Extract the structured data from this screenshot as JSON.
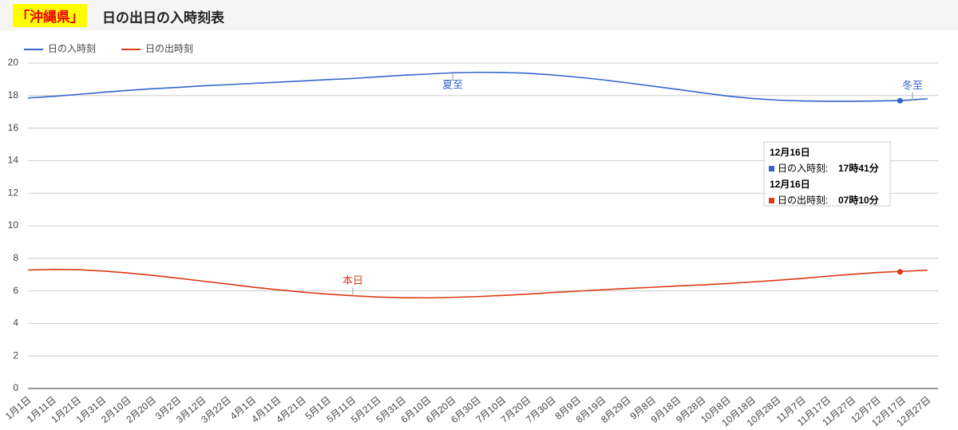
{
  "header": {
    "prefecture": "「沖縄県」",
    "title": "日の出日の入時刻表"
  },
  "chart_data": {
    "type": "line",
    "categories": [
      "1月1日",
      "1月11日",
      "1月21日",
      "1月31日",
      "2月10日",
      "2月20日",
      "3月2日",
      "3月12日",
      "3月22日",
      "4月1日",
      "4月11日",
      "4月21日",
      "5月1日",
      "5月11日",
      "5月21日",
      "5月31日",
      "6月10日",
      "6月20日",
      "6月30日",
      "7月10日",
      "7月20日",
      "7月30日",
      "8月9日",
      "8月19日",
      "8月29日",
      "9月8日",
      "9月18日",
      "9月28日",
      "10月8日",
      "10月18日",
      "10月28日",
      "11月7日",
      "11月17日",
      "11月27日",
      "12月7日",
      "12月17日",
      "12月27日"
    ],
    "series": [
      {
        "name": "日の入時刻",
        "color": "#3366cc",
        "values": [
          17.85,
          17.95,
          18.07,
          18.2,
          18.32,
          18.42,
          18.5,
          18.6,
          18.67,
          18.75,
          18.82,
          18.9,
          18.98,
          19.05,
          19.15,
          19.25,
          19.32,
          19.4,
          19.43,
          19.42,
          19.37,
          19.27,
          19.13,
          18.97,
          18.78,
          18.58,
          18.38,
          18.17,
          17.97,
          17.82,
          17.72,
          17.67,
          17.65,
          17.65,
          17.67,
          17.7,
          17.8
        ]
      },
      {
        "name": "日の出時刻",
        "color": "#dc3912",
        "values": [
          7.28,
          7.32,
          7.3,
          7.22,
          7.1,
          6.95,
          6.78,
          6.6,
          6.42,
          6.23,
          6.07,
          5.92,
          5.8,
          5.7,
          5.62,
          5.58,
          5.57,
          5.6,
          5.65,
          5.72,
          5.8,
          5.9,
          5.98,
          6.07,
          6.15,
          6.22,
          6.3,
          6.37,
          6.45,
          6.55,
          6.65,
          6.77,
          6.9,
          7.02,
          7.13,
          7.2,
          7.27
        ]
      }
    ],
    "ylim": [
      0,
      20
    ],
    "yticks": [
      0,
      2,
      4,
      6,
      8,
      10,
      12,
      14,
      16,
      18,
      20
    ],
    "grid": true,
    "legend": "top",
    "annotations": [
      {
        "text": "夏至",
        "series": 0
      },
      {
        "text": "冬至",
        "series": 0
      },
      {
        "text": "本日",
        "series": 1
      }
    ],
    "tooltip": {
      "entries": [
        {
          "date": "12月16日",
          "name": "日の入時刻:",
          "value": {
            "value": 17.683,
            "label": "17時41分"
          }
        },
        {
          "date": "12月16日",
          "name": "日の出時刻:",
          "value": {
            "value": 7.167,
            "label": "07時10分"
          }
        }
      ]
    }
  }
}
